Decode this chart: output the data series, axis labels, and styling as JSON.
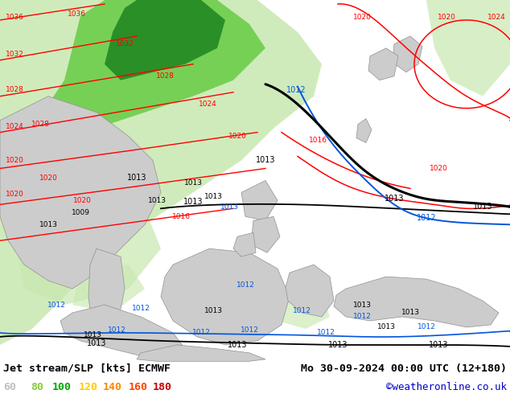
{
  "title_left": "Jet stream/SLP [kts] ECMWF",
  "title_right": "Mo 30-09-2024 00:00 UTC (12+180)",
  "credit": "©weatheronline.co.uk",
  "legend_values": [
    "60",
    "80",
    "100",
    "120",
    "140",
    "160",
    "180"
  ],
  "legend_colors": [
    "#c0c0c0",
    "#88cc44",
    "#00aa00",
    "#ffcc00",
    "#ff8800",
    "#ff4400",
    "#cc0000"
  ],
  "bg_color": "#ffffff",
  "map_bg": "#f0f0f0",
  "ocean_color": "#e8eef5",
  "figsize": [
    6.34,
    4.9
  ],
  "dpi": 100,
  "bottom_bar_color": "#ffffff",
  "title_color": "#000000",
  "credit_color": "#0000cc",
  "light_green": "#c8e8b0",
  "med_green": "#66cc44",
  "dark_green": "#228822",
  "land_gray": "#c8c8c8",
  "land_outline": "#808080"
}
